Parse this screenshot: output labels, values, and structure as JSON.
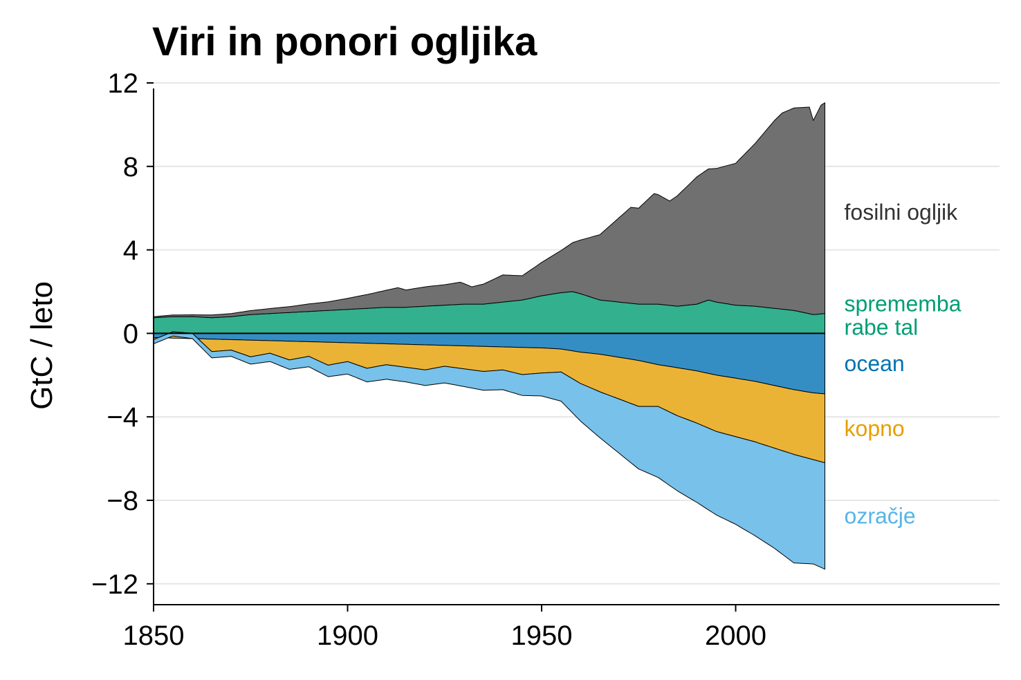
{
  "chart_data": {
    "type": "area",
    "title": "Viri in ponori ogljika",
    "xlabel": "",
    "ylabel": "GtC / leto",
    "xlim": [
      1850,
      2068
    ],
    "ylim": [
      -13,
      12
    ],
    "x_ticks": [
      1850,
      1900,
      1950,
      2000
    ],
    "y_ticks": [
      12,
      8,
      4,
      0,
      -4,
      -8,
      -12
    ],
    "y_tick_labels": [
      "12",
      "8",
      "4",
      "0",
      "−4",
      "−8",
      "−12"
    ],
    "grid": "horizontal",
    "legend": "direct labels at right",
    "colors": {
      "fossil": "#707070",
      "land_use": "#33b08d",
      "ocean": "#348ec4",
      "land": "#ebb336",
      "atmosphere": "#77c1ea"
    },
    "label_colors": {
      "fossil": "#333333",
      "land_use": "#009e73",
      "ocean": "#0072b2",
      "land": "#e69f00",
      "atmosphere": "#56b4e9"
    },
    "series": [
      {
        "key": "land_use",
        "name_lines": [
          "sprememba",
          "rabe tal"
        ],
        "stack": "sources",
        "points": [
          [
            1850,
            0.75
          ],
          [
            1855,
            0.8
          ],
          [
            1860,
            0.8
          ],
          [
            1865,
            0.75
          ],
          [
            1870,
            0.8
          ],
          [
            1875,
            0.9
          ],
          [
            1880,
            0.95
          ],
          [
            1885,
            1.0
          ],
          [
            1890,
            1.05
          ],
          [
            1895,
            1.1
          ],
          [
            1900,
            1.15
          ],
          [
            1905,
            1.2
          ],
          [
            1910,
            1.25
          ],
          [
            1915,
            1.25
          ],
          [
            1920,
            1.3
          ],
          [
            1925,
            1.35
          ],
          [
            1930,
            1.4
          ],
          [
            1935,
            1.4
          ],
          [
            1940,
            1.5
          ],
          [
            1945,
            1.6
          ],
          [
            1950,
            1.8
          ],
          [
            1955,
            1.95
          ],
          [
            1958,
            2.0
          ],
          [
            1960,
            1.9
          ],
          [
            1965,
            1.6
          ],
          [
            1970,
            1.5
          ],
          [
            1975,
            1.4
          ],
          [
            1980,
            1.4
          ],
          [
            1985,
            1.3
          ],
          [
            1990,
            1.4
          ],
          [
            1993,
            1.6
          ],
          [
            1995,
            1.5
          ],
          [
            2000,
            1.35
          ],
          [
            2005,
            1.3
          ],
          [
            2010,
            1.2
          ],
          [
            2015,
            1.1
          ],
          [
            2020,
            0.9
          ],
          [
            2023,
            0.95
          ]
        ]
      },
      {
        "key": "fossil",
        "name_lines": [
          "fosilni ogljik"
        ],
        "stack": "sources",
        "points": [
          [
            1850,
            0.05
          ],
          [
            1855,
            0.08
          ],
          [
            1860,
            0.09
          ],
          [
            1865,
            0.13
          ],
          [
            1870,
            0.15
          ],
          [
            1875,
            0.19
          ],
          [
            1880,
            0.24
          ],
          [
            1885,
            0.28
          ],
          [
            1890,
            0.36
          ],
          [
            1895,
            0.41
          ],
          [
            1900,
            0.53
          ],
          [
            1905,
            0.66
          ],
          [
            1910,
            0.82
          ],
          [
            1913,
            0.94
          ],
          [
            1915,
            0.83
          ],
          [
            1920,
            0.93
          ],
          [
            1925,
            0.98
          ],
          [
            1929,
            1.06
          ],
          [
            1932,
            0.83
          ],
          [
            1935,
            0.96
          ],
          [
            1940,
            1.3
          ],
          [
            1945,
            1.16
          ],
          [
            1950,
            1.6
          ],
          [
            1955,
            2.02
          ],
          [
            1960,
            2.57
          ],
          [
            1965,
            3.13
          ],
          [
            1970,
            4.05
          ],
          [
            1973,
            4.6
          ],
          [
            1975,
            4.6
          ],
          [
            1979,
            5.3
          ],
          [
            1980,
            5.25
          ],
          [
            1983,
            5.0
          ],
          [
            1985,
            5.3
          ],
          [
            1990,
            6.1
          ],
          [
            1995,
            6.4
          ],
          [
            2000,
            6.8
          ],
          [
            2005,
            7.8
          ],
          [
            2010,
            9.0
          ],
          [
            2012,
            9.4
          ],
          [
            2015,
            9.7
          ],
          [
            2019,
            9.9
          ],
          [
            2020,
            9.3
          ],
          [
            2022,
            10.0
          ],
          [
            2023,
            10.1
          ]
        ]
      },
      {
        "key": "ocean",
        "name_lines": [
          "ocean"
        ],
        "stack": "sinks",
        "points": [
          [
            1850,
            -0.2
          ],
          [
            1860,
            -0.25
          ],
          [
            1870,
            -0.3
          ],
          [
            1880,
            -0.35
          ],
          [
            1890,
            -0.4
          ],
          [
            1900,
            -0.45
          ],
          [
            1910,
            -0.5
          ],
          [
            1920,
            -0.55
          ],
          [
            1930,
            -0.6
          ],
          [
            1940,
            -0.65
          ],
          [
            1950,
            -0.7
          ],
          [
            1955,
            -0.75
          ],
          [
            1960,
            -0.9
          ],
          [
            1965,
            -1.0
          ],
          [
            1970,
            -1.15
          ],
          [
            1975,
            -1.3
          ],
          [
            1980,
            -1.5
          ],
          [
            1985,
            -1.65
          ],
          [
            1990,
            -1.8
          ],
          [
            1995,
            -2.0
          ],
          [
            2000,
            -2.15
          ],
          [
            2005,
            -2.3
          ],
          [
            2010,
            -2.5
          ],
          [
            2015,
            -2.7
          ],
          [
            2020,
            -2.85
          ],
          [
            2023,
            -2.9
          ]
        ]
      },
      {
        "key": "land",
        "name_lines": [
          "kopno"
        ],
        "stack": "sinks",
        "points": [
          [
            1850,
            -0.1
          ],
          [
            1855,
            0.3
          ],
          [
            1860,
            0.25
          ],
          [
            1865,
            -0.6
          ],
          [
            1870,
            -0.5
          ],
          [
            1875,
            -0.8
          ],
          [
            1880,
            -0.6
          ],
          [
            1885,
            -0.9
          ],
          [
            1890,
            -0.7
          ],
          [
            1895,
            -1.1
          ],
          [
            1900,
            -0.9
          ],
          [
            1905,
            -1.2
          ],
          [
            1910,
            -1.0
          ],
          [
            1915,
            -1.1
          ],
          [
            1920,
            -1.2
          ],
          [
            1925,
            -1.0
          ],
          [
            1930,
            -1.1
          ],
          [
            1935,
            -1.2
          ],
          [
            1940,
            -1.1
          ],
          [
            1945,
            -1.3
          ],
          [
            1950,
            -1.2
          ],
          [
            1955,
            -1.1
          ],
          [
            1960,
            -1.5
          ],
          [
            1965,
            -1.8
          ],
          [
            1970,
            -2.0
          ],
          [
            1975,
            -2.2
          ],
          [
            1980,
            -2.0
          ],
          [
            1985,
            -2.3
          ],
          [
            1990,
            -2.5
          ],
          [
            1995,
            -2.7
          ],
          [
            2000,
            -2.8
          ],
          [
            2005,
            -2.9
          ],
          [
            2010,
            -3.0
          ],
          [
            2015,
            -3.1
          ],
          [
            2020,
            -3.2
          ],
          [
            2023,
            -3.3
          ]
        ]
      },
      {
        "key": "atmosphere",
        "name_lines": [
          "ozračje"
        ],
        "stack": "sinks",
        "points": [
          [
            1850,
            -0.2
          ],
          [
            1855,
            -0.2
          ],
          [
            1860,
            -0.25
          ],
          [
            1865,
            -0.3
          ],
          [
            1870,
            -0.3
          ],
          [
            1875,
            -0.35
          ],
          [
            1880,
            -0.4
          ],
          [
            1885,
            -0.45
          ],
          [
            1890,
            -0.5
          ],
          [
            1895,
            -0.55
          ],
          [
            1900,
            -0.6
          ],
          [
            1905,
            -0.65
          ],
          [
            1910,
            -0.7
          ],
          [
            1915,
            -0.7
          ],
          [
            1920,
            -0.75
          ],
          [
            1925,
            -0.8
          ],
          [
            1930,
            -0.85
          ],
          [
            1935,
            -0.9
          ],
          [
            1940,
            -0.95
          ],
          [
            1945,
            -1.0
          ],
          [
            1950,
            -1.1
          ],
          [
            1955,
            -1.4
          ],
          [
            1960,
            -1.8
          ],
          [
            1965,
            -2.2
          ],
          [
            1970,
            -2.6
          ],
          [
            1975,
            -3.0
          ],
          [
            1980,
            -3.4
          ],
          [
            1985,
            -3.6
          ],
          [
            1990,
            -3.8
          ],
          [
            1995,
            -4.0
          ],
          [
            2000,
            -4.2
          ],
          [
            2005,
            -4.5
          ],
          [
            2010,
            -4.8
          ],
          [
            2015,
            -5.2
          ],
          [
            2020,
            -5.0
          ],
          [
            2023,
            -5.1
          ]
        ]
      }
    ]
  }
}
